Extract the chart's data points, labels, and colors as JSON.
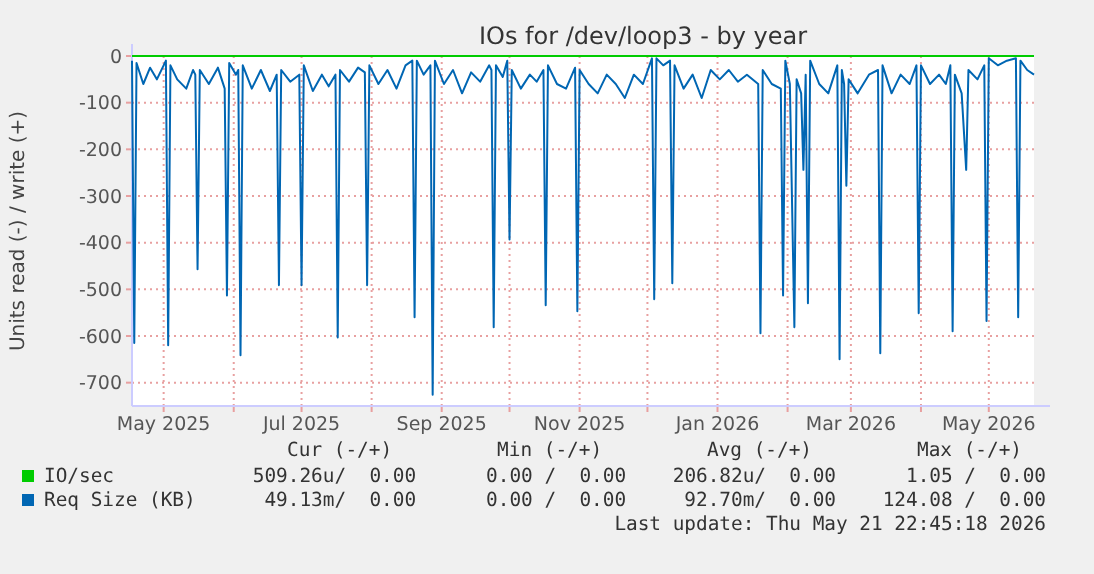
{
  "chart_data": {
    "type": "line",
    "title": "IOs for /dev/loop3 - by year",
    "ylabel": "Units read (-) / write (+)",
    "xlim": [
      "2025-04-17",
      "2026-05-21"
    ],
    "ylim": [
      -750,
      0
    ],
    "xticks": [
      {
        "value": "2025-05-01",
        "label": "May 2025"
      },
      {
        "value": "2025-06-01",
        "label": null
      },
      {
        "value": "2025-07-01",
        "label": "Jul 2025"
      },
      {
        "value": "2025-08-01",
        "label": null
      },
      {
        "value": "2025-09-01",
        "label": "Sep 2025"
      },
      {
        "value": "2025-10-01",
        "label": null
      },
      {
        "value": "2025-11-01",
        "label": "Nov 2025"
      },
      {
        "value": "2025-12-01",
        "label": null
      },
      {
        "value": "2026-01-01",
        "label": "Jan 2026"
      },
      {
        "value": "2026-02-01",
        "label": null
      },
      {
        "value": "2026-03-01",
        "label": "Mar 2026"
      },
      {
        "value": "2026-04-01",
        "label": null
      },
      {
        "value": "2026-05-01",
        "label": "May 2026"
      }
    ],
    "yticks": [
      0,
      -100,
      -200,
      -300,
      -400,
      -500,
      -600,
      -700
    ],
    "grid": true,
    "legend": "bottom",
    "series": [
      {
        "name": "IO/sec",
        "color": "#00cc00",
        "x": [
          "2025-04-17",
          "2026-05-21"
        ],
        "values": [
          0,
          0
        ]
      },
      {
        "name": "Req Size (KB)",
        "color": "#0066b3",
        "x": [
          "2025-04-17",
          "2025-04-18",
          "2025-04-19",
          "2025-04-22",
          "2025-04-25",
          "2025-04-28",
          "2025-05-01",
          "2025-05-02",
          "2025-05-03",
          "2025-05-04",
          "2025-05-07",
          "2025-05-11",
          "2025-05-14",
          "2025-05-15",
          "2025-05-16",
          "2025-05-17",
          "2025-05-21",
          "2025-05-25",
          "2025-05-28",
          "2025-05-29",
          "2025-05-30",
          "2025-06-02",
          "2025-06-03",
          "2025-06-04",
          "2025-06-05",
          "2025-06-09",
          "2025-06-13",
          "2025-06-17",
          "2025-06-20",
          "2025-06-21",
          "2025-06-22",
          "2025-06-26",
          "2025-06-30",
          "2025-07-01",
          "2025-07-02",
          "2025-07-06",
          "2025-07-10",
          "2025-07-13",
          "2025-07-16",
          "2025-07-17",
          "2025-07-18",
          "2025-07-22",
          "2025-07-26",
          "2025-07-29",
          "2025-07-30",
          "2025-07-31",
          "2025-08-04",
          "2025-08-08",
          "2025-08-12",
          "2025-08-16",
          "2025-08-19",
          "2025-08-20",
          "2025-08-21",
          "2025-08-24",
          "2025-08-27",
          "2025-08-28",
          "2025-08-29",
          "2025-09-02",
          "2025-09-06",
          "2025-09-10",
          "2025-09-14",
          "2025-09-18",
          "2025-09-22",
          "2025-09-23",
          "2025-09-24",
          "2025-09-25",
          "2025-09-28",
          "2025-09-30",
          "2025-10-01",
          "2025-10-02",
          "2025-10-06",
          "2025-10-10",
          "2025-10-13",
          "2025-10-16",
          "2025-10-17",
          "2025-10-18",
          "2025-10-22",
          "2025-10-26",
          "2025-10-30",
          "2025-10-31",
          "2025-11-01",
          "2025-11-05",
          "2025-11-09",
          "2025-11-13",
          "2025-11-17",
          "2025-11-21",
          "2025-11-25",
          "2025-11-29",
          "2025-12-03",
          "2025-12-04",
          "2025-12-05",
          "2025-12-08",
          "2025-12-11",
          "2025-12-12",
          "2025-12-13",
          "2025-12-17",
          "2025-12-21",
          "2025-12-25",
          "2025-12-29",
          "2026-01-02",
          "2026-01-06",
          "2026-01-10",
          "2026-01-14",
          "2026-01-19",
          "2026-01-20",
          "2026-01-21",
          "2026-01-25",
          "2026-01-29",
          "2026-01-30",
          "2026-01-31",
          "2026-02-02",
          "2026-02-04",
          "2026-02-05",
          "2026-02-07",
          "2026-02-08",
          "2026-02-09",
          "2026-02-10",
          "2026-02-11",
          "2026-02-15",
          "2026-02-19",
          "2026-02-23",
          "2026-02-24",
          "2026-02-25",
          "2026-02-26",
          "2026-02-27",
          "2026-02-28",
          "2026-03-04",
          "2026-03-09",
          "2026-03-13",
          "2026-03-14",
          "2026-03-15",
          "2026-03-19",
          "2026-03-23",
          "2026-03-27",
          "2026-03-30",
          "2026-03-31",
          "2026-04-01",
          "2026-04-05",
          "2026-04-09",
          "2026-04-12",
          "2026-04-14",
          "2026-04-15",
          "2026-04-16",
          "2026-04-19",
          "2026-04-21",
          "2026-04-22",
          "2026-04-26",
          "2026-04-29",
          "2026-04-30",
          "2026-05-01",
          "2026-05-05",
          "2026-05-09",
          "2026-05-13",
          "2026-05-14",
          "2026-05-15",
          "2026-05-18",
          "2026-05-21"
        ],
        "values": [
          -10,
          -615,
          -15,
          -60,
          -25,
          -50,
          -20,
          -10,
          -620,
          -20,
          -50,
          -70,
          -30,
          -40,
          -457,
          -30,
          -60,
          -25,
          -70,
          -513,
          -15,
          -40,
          -30,
          -641,
          -20,
          -70,
          -30,
          -75,
          -40,
          -491,
          -30,
          -55,
          -40,
          -491,
          -20,
          -75,
          -40,
          -65,
          -40,
          -603,
          -30,
          -55,
          -25,
          -35,
          -491,
          -20,
          -60,
          -30,
          -70,
          -20,
          -10,
          -560,
          -10,
          -40,
          -20,
          -726,
          -10,
          -60,
          -30,
          -80,
          -35,
          -55,
          -20,
          -30,
          -581,
          -20,
          -45,
          -10,
          -393,
          -30,
          -70,
          -40,
          -55,
          -30,
          -534,
          -20,
          -60,
          -70,
          -25,
          -547,
          -30,
          -60,
          -80,
          -40,
          -60,
          -90,
          -40,
          -60,
          -5,
          -521,
          -5,
          -20,
          -10,
          -487,
          -20,
          -70,
          -40,
          -90,
          -30,
          -50,
          -30,
          -55,
          -40,
          -60,
          -594,
          -30,
          -60,
          -70,
          -513,
          -10,
          -60,
          -581,
          -50,
          -80,
          -244,
          -40,
          -530,
          -10,
          -60,
          -80,
          -20,
          -650,
          -30,
          -60,
          -278,
          -50,
          -80,
          -40,
          -30,
          -637,
          -20,
          -80,
          -40,
          -60,
          -20,
          -551,
          -20,
          -60,
          -40,
          -60,
          -20,
          -590,
          -40,
          -80,
          -244,
          -30,
          -50,
          -20,
          -568,
          -5,
          -20,
          -10,
          -5,
          -560,
          -10,
          -30,
          -40
        ]
      }
    ],
    "annotations": [
      "Cur (-/+)         Min (-/+)         Avg (-/+)         Max (-/+)",
      "509.26u/  0.00      0.00 /  0.00    206.82u/  0.00      1.05 /  0.00",
      "49.13m/  0.00      0.00 /  0.00     92.70m/  0.00    124.08 /  0.00",
      "Last update: Thu May 21 22:45:18 2026"
    ]
  }
}
